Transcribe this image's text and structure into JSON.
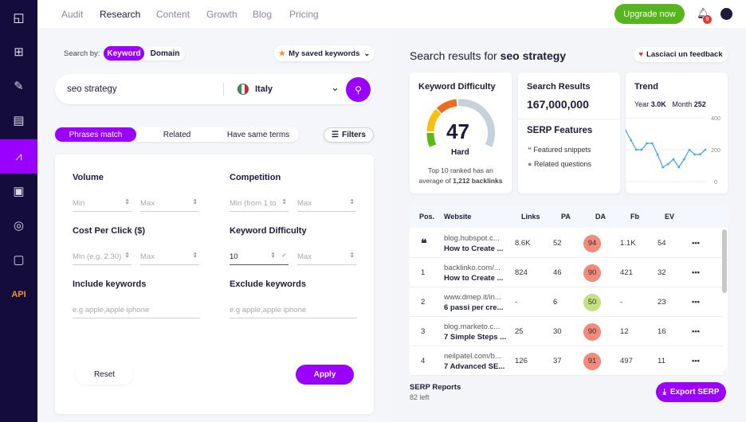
{
  "nav": {
    "items": [
      "Audit",
      "Research",
      "Content",
      "Growth",
      "Blog",
      "Pricing"
    ],
    "active": "Research",
    "upgrade": "Upgrade now",
    "notif_count": "9"
  },
  "sidebar": {
    "api": "API"
  },
  "search": {
    "search_by": "Search by:",
    "keyword": "Keyword",
    "domain": "Domain",
    "saved": "My saved keywords",
    "query": "seo strategy",
    "country": "Italy"
  },
  "tabs": {
    "phrases": "Phrases match",
    "related": "Related",
    "same": "Have same terms",
    "filters": "Filters"
  },
  "filters": {
    "volume": "Volume",
    "competition": "Competition",
    "cpc": "Cost Per Click ($)",
    "kd": "Keyword Difficulty",
    "include": "Include keywords",
    "exclude": "Exclude keywords",
    "min": "Min",
    "max": "Max",
    "comp_min": "Min (from 1 to",
    "cpc_min": "Min (e.g. 2.30)",
    "kd_min_value": "10",
    "include_ph": "e.g apple,apple iphone",
    "exclude_ph": "e.g apple,apple iphone",
    "reset": "Reset",
    "apply": "Apply"
  },
  "results": {
    "title_prefix": "Search results for ",
    "query": "seo strategy",
    "feedback": "Lasciaci un feedback",
    "kd": {
      "title": "Keyword Difficulty",
      "value": "47",
      "label": "Hard",
      "note1": "Top 10 ranked has an",
      "note2": "average of ",
      "backlinks": "1,212 backlinks"
    },
    "sr": {
      "title": "Search Results",
      "value": "167,000,000",
      "serp_title": "SERP Features",
      "f1": "Featured snippets",
      "f2": "Related questions"
    },
    "trend": {
      "title": "Trend",
      "year_label": "Year",
      "year": "3.0K",
      "month_label": "Month",
      "month": "252",
      "y_ticks": [
        "400",
        "200",
        "0"
      ],
      "values": [
        320,
        260,
        200,
        200,
        240,
        240,
        170,
        90,
        110,
        140,
        90,
        140,
        200,
        170,
        170,
        200
      ]
    },
    "headers": [
      "Pos.",
      "Website",
      "Links",
      "PA",
      "DA",
      "Fb",
      "EV"
    ],
    "rows": [
      {
        "pos": "",
        "url": "blog.hubspot.c...",
        "title": "How to Create ...",
        "links": "8.6K",
        "pa": "52",
        "da": "94",
        "fb": "1.1K",
        "ev": "54",
        "da_color": "#f28b7b"
      },
      {
        "pos": "1",
        "url": "backlinko.com/...",
        "title": "How to Create ...",
        "links": "824",
        "pa": "46",
        "da": "90",
        "fb": "421",
        "ev": "32",
        "da_color": "#f28b7b"
      },
      {
        "pos": "2",
        "url": "www.dmep.it/in...",
        "title": "6 passi per cre...",
        "links": "-",
        "pa": "6",
        "da": "50",
        "fb": "-",
        "ev": "23",
        "da_color": "#c9df84"
      },
      {
        "pos": "3",
        "url": "blog.marketo.c...",
        "title": "7 Simple Steps ...",
        "links": "25",
        "pa": "30",
        "da": "90",
        "fb": "12",
        "ev": "16",
        "da_color": "#f28b7b"
      },
      {
        "pos": "4",
        "url": "neilpatel.com/b...",
        "title": "7 Advanced SE...",
        "links": "126",
        "pa": "37",
        "da": "91",
        "fb": "497",
        "ev": "11",
        "da_color": "#f28b7b"
      }
    ],
    "reports_label": "SERP Reports",
    "reports_left": "82 left",
    "export": "Export SERP"
  }
}
